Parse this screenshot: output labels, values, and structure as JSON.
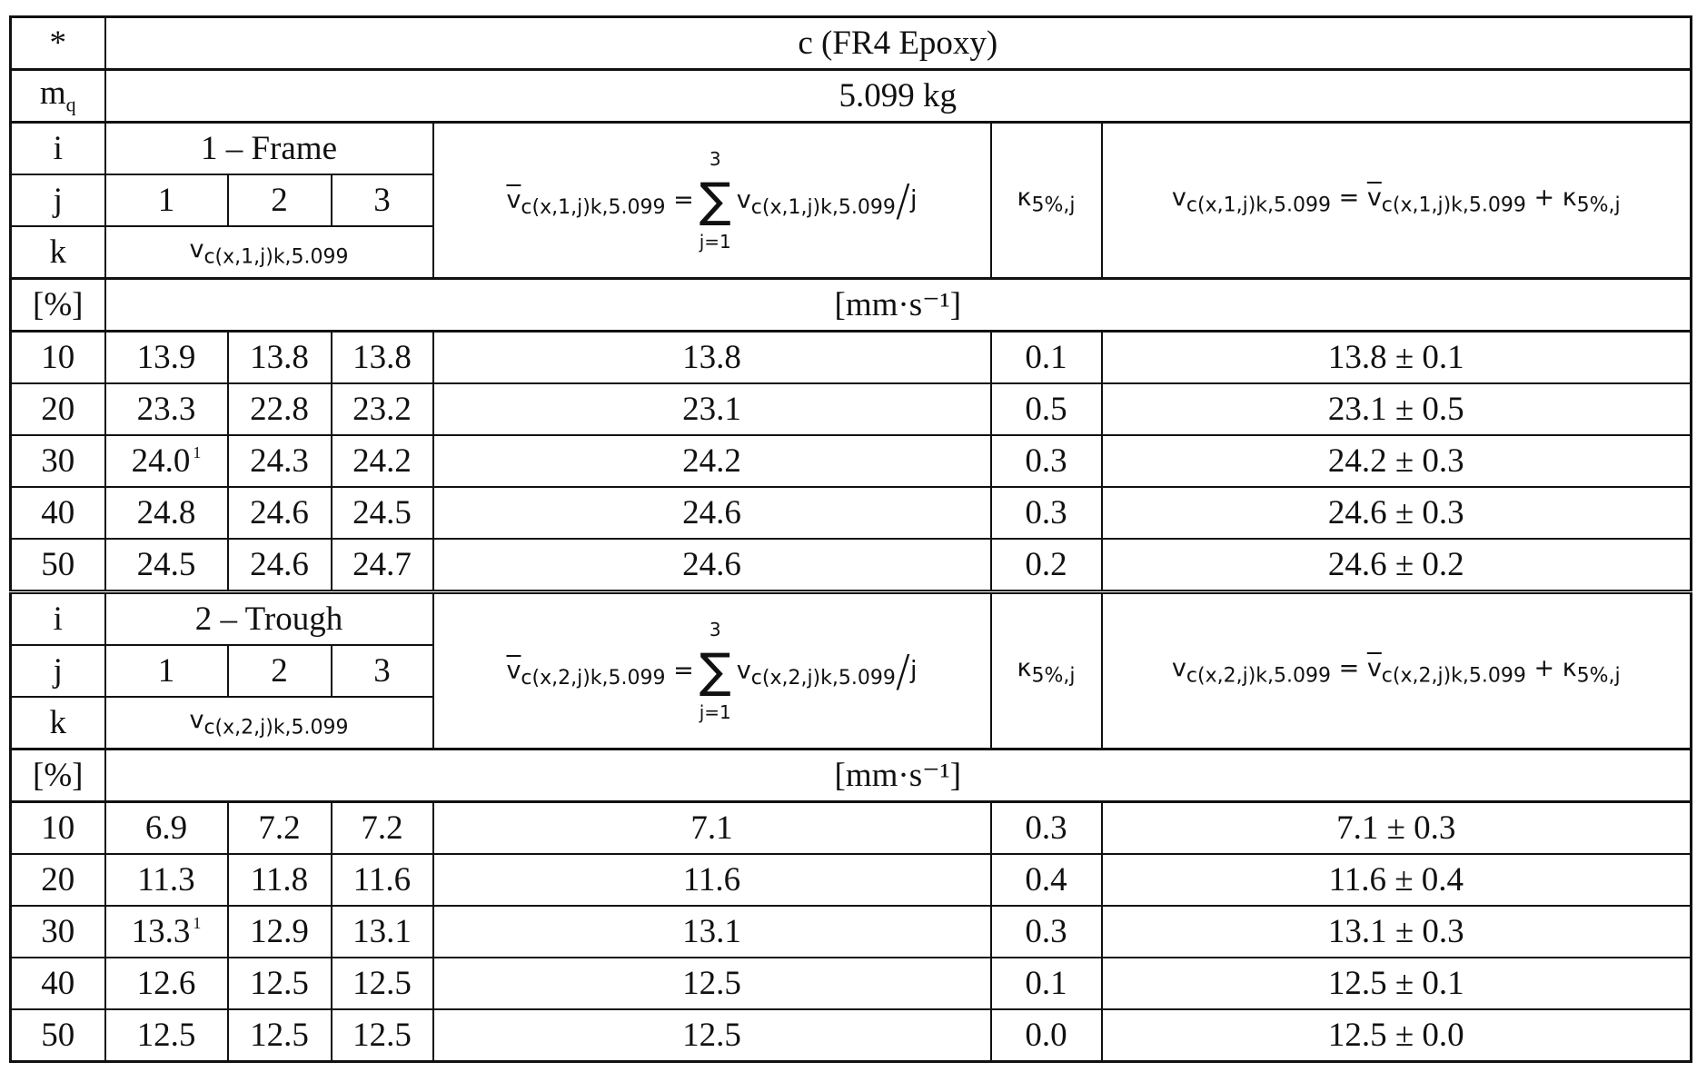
{
  "header": {
    "star": "*",
    "material": "c (FR4 Epoxy)",
    "mass_label": "mq",
    "mass_label_main": "m",
    "mass_label_sub": "q",
    "mass": "5.099 kg",
    "unit_pct": "[%]",
    "unit_speed": "[mm·s⁻¹]",
    "i": "i",
    "j": "j",
    "k": "k",
    "j_cols": [
      "1",
      "2",
      "3"
    ]
  },
  "sections": [
    {
      "i_label": "1 – Frame",
      "idx": "1",
      "rows": [
        {
          "k": "10",
          "v": [
            "13.9",
            "13.8",
            "13.8"
          ],
          "mean": "13.8",
          "kappa": "0.1",
          "result": "13.8 ± 0.1"
        },
        {
          "k": "20",
          "v": [
            "23.3",
            "22.8",
            "23.2"
          ],
          "mean": "23.1",
          "kappa": "0.5",
          "result": "23.1 ± 0.5"
        },
        {
          "k": "30",
          "v": [
            "24.0",
            "24.3",
            "24.2"
          ],
          "fn": "1",
          "mean": "24.2",
          "kappa": "0.3",
          "result": "24.2 ± 0.3"
        },
        {
          "k": "40",
          "v": [
            "24.8",
            "24.6",
            "24.5"
          ],
          "mean": "24.6",
          "kappa": "0.3",
          "result": "24.6 ± 0.3"
        },
        {
          "k": "50",
          "v": [
            "24.5",
            "24.6",
            "24.7"
          ],
          "mean": "24.6",
          "kappa": "0.2",
          "result": "24.6 ± 0.2"
        }
      ]
    },
    {
      "i_label": "2 – Trough",
      "idx": "2",
      "rows": [
        {
          "k": "10",
          "v": [
            "6.9",
            "7.2",
            "7.2"
          ],
          "mean": "7.1",
          "kappa": "0.3",
          "result": "7.1 ± 0.3"
        },
        {
          "k": "20",
          "v": [
            "11.3",
            "11.8",
            "11.6"
          ],
          "mean": "11.6",
          "kappa": "0.4",
          "result": "11.6 ± 0.4"
        },
        {
          "k": "30",
          "v": [
            "13.3",
            "12.9",
            "13.1"
          ],
          "fn": "1",
          "mean": "13.1",
          "kappa": "0.3",
          "result": "13.1 ± 0.3"
        },
        {
          "k": "40",
          "v": [
            "12.6",
            "12.5",
            "12.5"
          ],
          "mean": "12.5",
          "kappa": "0.1",
          "result": "12.5 ± 0.1"
        },
        {
          "k": "50",
          "v": [
            "12.5",
            "12.5",
            "12.5"
          ],
          "mean": "12.5",
          "kappa": "0.0",
          "result": "12.5 ± 0.0"
        }
      ]
    }
  ],
  "formula": {
    "v": "v",
    "sub1": "c(x,1,j)k,5.099",
    "sub2": "c(x,2,j)k,5.099",
    "sum_top": "3",
    "sum_bot": "j=1",
    "sum": "∑",
    "eq": "=",
    "plus": "+",
    "div": "/",
    "j": "j",
    "kappa": "κ",
    "kappa_sub": "5%,j"
  }
}
